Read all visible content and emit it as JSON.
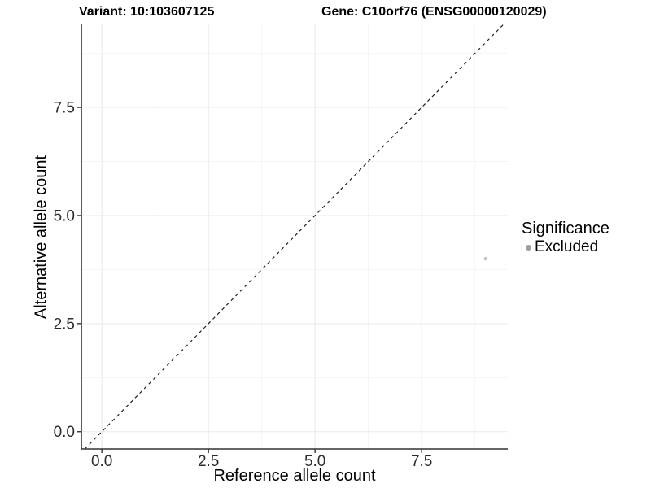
{
  "header": {
    "variant_title": "Variant: 10:103607125",
    "gene_title": "Gene: C10orf76 (ENSG00000120029)"
  },
  "chart_data": {
    "type": "scatter",
    "title": "",
    "xlabel": "Reference allele count",
    "ylabel": "Alternative allele count",
    "xlim": [
      -0.48,
      9.52
    ],
    "ylim": [
      -0.4,
      9.42
    ],
    "x_ticks": {
      "values": [
        0,
        2.5,
        5,
        7.5
      ],
      "labels": [
        "0.0",
        "2.5",
        "5.0",
        "7.5"
      ]
    },
    "y_ticks": {
      "values": [
        0,
        2.5,
        5,
        7.5
      ],
      "labels": [
        "0.0",
        "2.5",
        "5.0",
        "7.5"
      ]
    },
    "x_minor_ticks": [
      1.25,
      3.75,
      6.25,
      8.75
    ],
    "y_minor_ticks": [
      1.25,
      3.75,
      6.25,
      8.75
    ],
    "grid": "on",
    "series": [
      {
        "name": "Excluded",
        "points": [
          {
            "x": 9,
            "y": 4
          }
        ],
        "point_color": "#c2c2c2",
        "point_radius": 2.2
      }
    ],
    "reference_line": {
      "slope": 1,
      "intercept": 0,
      "style": "dashed",
      "color": "#1f1f1f"
    },
    "legend": {
      "position": "right",
      "title": "Significance",
      "entries": [
        {
          "label": "Excluded",
          "color": "#9e9e9e"
        }
      ]
    },
    "colors": {
      "grid_major": "#e9e9e9",
      "grid_minor": "#f4f4f4",
      "axis_line": "#333333",
      "tick_mark": "#333333",
      "tick_label": "#2b2b2b"
    }
  }
}
